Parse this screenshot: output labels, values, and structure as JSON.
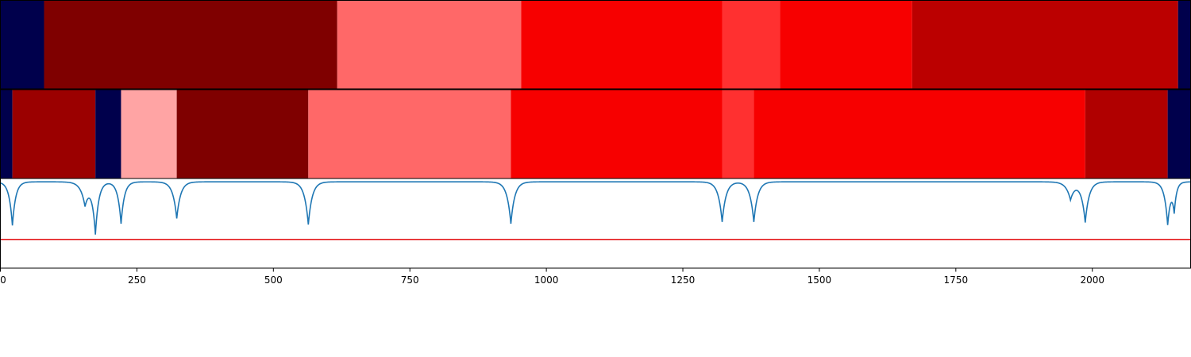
{
  "chart_data": {
    "type": "segmentation-timeline",
    "xlim": [
      0,
      2180
    ],
    "x_ticks": [
      0,
      250,
      500,
      750,
      1000,
      1250,
      1500,
      1750,
      2000
    ],
    "x_tick_labels": [
      "0",
      "250",
      "500",
      "750",
      "1000",
      "1250",
      "1500",
      "1750",
      "2000"
    ],
    "segment_rows": [
      {
        "segments": [
          {
            "start": 0,
            "end": 80,
            "color": "#00004c"
          },
          {
            "start": 80,
            "end": 617,
            "color": "#7f0000"
          },
          {
            "start": 617,
            "end": 954,
            "color": "#ff6868"
          },
          {
            "start": 954,
            "end": 1322,
            "color": "#f70000"
          },
          {
            "start": 1322,
            "end": 1428,
            "color": "#ff3030"
          },
          {
            "start": 1428,
            "end": 1670,
            "color": "#f70000"
          },
          {
            "start": 1670,
            "end": 2157,
            "color": "#bb0000"
          },
          {
            "start": 2157,
            "end": 2180,
            "color": "#00004c"
          }
        ]
      },
      {
        "segments": [
          {
            "start": 0,
            "end": 22,
            "color": "#00004c"
          },
          {
            "start": 22,
            "end": 174,
            "color": "#9b0000"
          },
          {
            "start": 174,
            "end": 221,
            "color": "#00004c"
          },
          {
            "start": 221,
            "end": 323,
            "color": "#ffa4a4"
          },
          {
            "start": 323,
            "end": 564,
            "color": "#7f0000"
          },
          {
            "start": 564,
            "end": 935,
            "color": "#ff6868"
          },
          {
            "start": 935,
            "end": 1322,
            "color": "#f70000"
          },
          {
            "start": 1322,
            "end": 1380,
            "color": "#ff3030"
          },
          {
            "start": 1380,
            "end": 1987,
            "color": "#f70000"
          },
          {
            "start": 1987,
            "end": 2138,
            "color": "#b00000"
          },
          {
            "start": 2138,
            "end": 2180,
            "color": "#00004c"
          }
        ]
      }
    ],
    "curve": {
      "color": "#1f77b4",
      "y_range": [
        0,
        1
      ],
      "baseline": 0.98,
      "dips": [
        {
          "center": 22,
          "depth": 0.5,
          "width": 6
        },
        {
          "center": 155,
          "depth": 0.26,
          "width": 8
        },
        {
          "center": 174,
          "depth": 0.58,
          "width": 6
        },
        {
          "center": 221,
          "depth": 0.48,
          "width": 6
        },
        {
          "center": 323,
          "depth": 0.42,
          "width": 7
        },
        {
          "center": 564,
          "depth": 0.49,
          "width": 7
        },
        {
          "center": 935,
          "depth": 0.48,
          "width": 7
        },
        {
          "center": 1322,
          "depth": 0.46,
          "width": 7
        },
        {
          "center": 1380,
          "depth": 0.46,
          "width": 7
        },
        {
          "center": 1960,
          "depth": 0.2,
          "width": 8
        },
        {
          "center": 1987,
          "depth": 0.46,
          "width": 7
        },
        {
          "center": 2138,
          "depth": 0.48,
          "width": 6
        },
        {
          "center": 2150,
          "depth": 0.3,
          "width": 4
        }
      ]
    },
    "threshold": {
      "value": 0.32,
      "color": "#e41a1c"
    },
    "grid": false,
    "legend": "none"
  }
}
